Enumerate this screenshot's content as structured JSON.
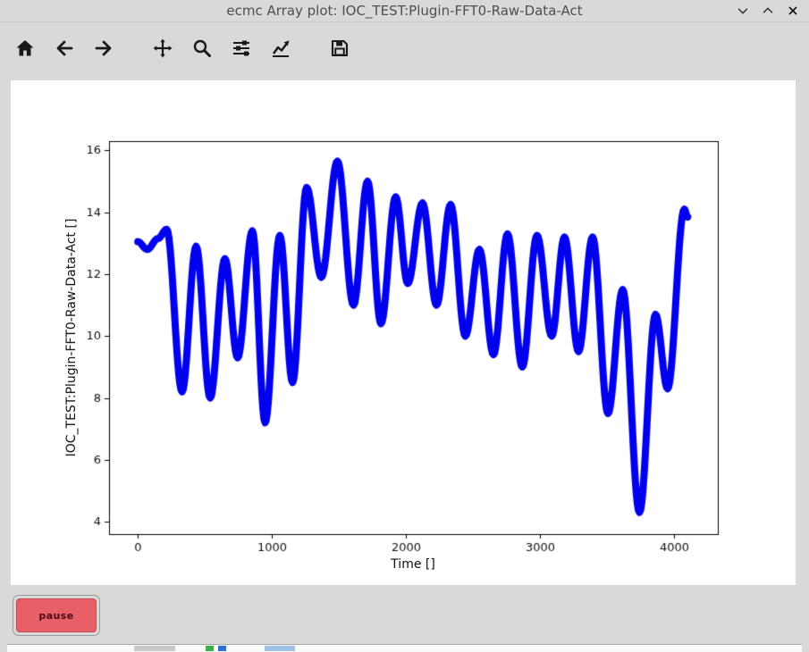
{
  "window": {
    "title": "ecmc Array plot: IOC_TEST:Plugin-FFT0-Raw-Data-Act",
    "control_icons": [
      "chevron-down-icon",
      "chevron-up-icon",
      "close-icon"
    ]
  },
  "toolbar": {
    "buttons": [
      "home",
      "back",
      "forward",
      "pan",
      "zoom",
      "subplots",
      "customize",
      "save"
    ]
  },
  "chart_data": {
    "type": "line",
    "title": "",
    "xlabel": "Time []",
    "ylabel": "IOC_TEST:Plugin-FFT0-Raw-Data-Act []",
    "xlim": [
      -215,
      4330
    ],
    "ylim": [
      3.6,
      16.3
    ],
    "xticks": [
      0,
      1000,
      2000,
      3000,
      4000
    ],
    "yticks": [
      4,
      6,
      8,
      10,
      12,
      14,
      16
    ],
    "grid": false,
    "legend": "none",
    "line_color": "#0000ee",
    "line_width": 8,
    "interpolation": "cosine-between-extrema",
    "extrema": [
      [
        0,
        13.05
      ],
      [
        70,
        12.8
      ],
      [
        150,
        13.15
      ],
      [
        215,
        13.45
      ],
      [
        330,
        8.2
      ],
      [
        435,
        12.9
      ],
      [
        540,
        8.0
      ],
      [
        650,
        12.5
      ],
      [
        745,
        9.3
      ],
      [
        855,
        13.4
      ],
      [
        950,
        7.2
      ],
      [
        1060,
        13.25
      ],
      [
        1155,
        8.5
      ],
      [
        1260,
        14.8
      ],
      [
        1370,
        11.9
      ],
      [
        1490,
        15.65
      ],
      [
        1610,
        11.0
      ],
      [
        1715,
        15.0
      ],
      [
        1815,
        10.4
      ],
      [
        1925,
        14.5
      ],
      [
        2015,
        11.7
      ],
      [
        2125,
        14.3
      ],
      [
        2230,
        11.0
      ],
      [
        2335,
        14.25
      ],
      [
        2445,
        10.0
      ],
      [
        2550,
        12.8
      ],
      [
        2655,
        9.4
      ],
      [
        2760,
        13.3
      ],
      [
        2870,
        9.0
      ],
      [
        2980,
        13.25
      ],
      [
        3090,
        10.0
      ],
      [
        3185,
        13.2
      ],
      [
        3290,
        9.5
      ],
      [
        3395,
        13.2
      ],
      [
        3510,
        7.5
      ],
      [
        3620,
        11.5
      ],
      [
        3745,
        4.3
      ],
      [
        3865,
        10.7
      ],
      [
        3955,
        8.3
      ],
      [
        4080,
        14.1
      ],
      [
        4105,
        13.85
      ]
    ]
  },
  "pause_button": {
    "label": "pause",
    "bg": "#e85f68",
    "border": "#c34a52",
    "text_color": "#4a0d14"
  },
  "taskbar_sliver": {
    "items": [
      {
        "x": 142,
        "w": 46,
        "color": "#c9c9c9"
      },
      {
        "x": 222,
        "w": 9,
        "color": "#3fae4a"
      },
      {
        "x": 236,
        "w": 9,
        "color": "#2f6fd0"
      },
      {
        "x": 288,
        "w": 34,
        "color": "#9fc3e8"
      }
    ]
  },
  "colors": {
    "window_bg": "#d9d9d9",
    "figure_bg": "#ffffff",
    "line": "#0000ee"
  }
}
